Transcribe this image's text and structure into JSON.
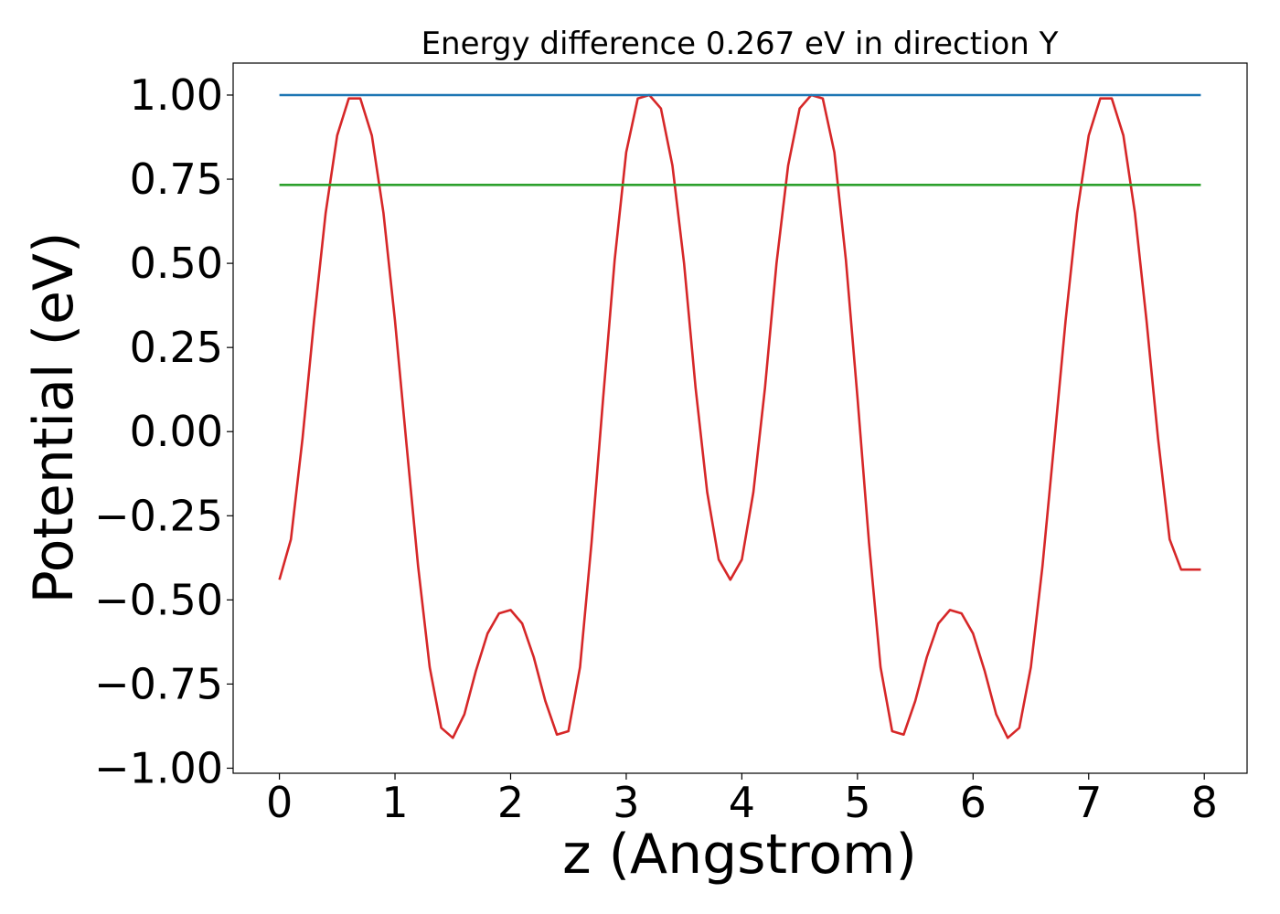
{
  "chart_data": {
    "type": "line",
    "title": "Energy difference 0.267 eV in direction Y",
    "xlabel": "z (Angstrom)",
    "ylabel": "Potential (eV)",
    "xlim": [
      -0.4,
      8.37
    ],
    "ylim": [
      -1.015,
      1.095
    ],
    "xticks": [
      0,
      1,
      2,
      3,
      4,
      5,
      6,
      7,
      8
    ],
    "xtick_labels": [
      "0",
      "1",
      "2",
      "3",
      "4",
      "5",
      "6",
      "7",
      "8"
    ],
    "yticks": [
      1.0,
      0.75,
      0.5,
      0.25,
      0.0,
      -0.25,
      -0.5,
      -0.75,
      -1.0
    ],
    "ytick_labels": [
      "1.00",
      "0.75",
      "0.50",
      "0.25",
      "0.00",
      "−0.25",
      "−0.50",
      "−0.75",
      "−1.00"
    ],
    "grid": false,
    "series": [
      {
        "color": "#d62728",
        "x": [
          0.0,
          0.1,
          0.2,
          0.3,
          0.4,
          0.5,
          0.6,
          0.7,
          0.8,
          0.9,
          1.0,
          1.1,
          1.2,
          1.3,
          1.4,
          1.5,
          1.6,
          1.7,
          1.8,
          1.9,
          2.0,
          2.1,
          2.2,
          2.3,
          2.4,
          2.5,
          2.6,
          2.7,
          2.8,
          2.9,
          3.0,
          3.1,
          3.2,
          3.3,
          3.4,
          3.5,
          3.6,
          3.7,
          3.8,
          3.9,
          4.0,
          4.1,
          4.2,
          4.3,
          4.4,
          4.5,
          4.6,
          4.7,
          4.8,
          4.9,
          5.0,
          5.1,
          5.2,
          5.3,
          5.4,
          5.5,
          5.6,
          5.7,
          5.8,
          5.9,
          6.0,
          6.1,
          6.2,
          6.3,
          6.4,
          6.5,
          6.6,
          6.7,
          6.8,
          6.9,
          7.0,
          7.1,
          7.2,
          7.3,
          7.4,
          7.5,
          7.6,
          7.7,
          7.8,
          7.9,
          7.97
        ],
        "y": [
          -0.44,
          -0.32,
          -0.02,
          0.33,
          0.65,
          0.88,
          0.99,
          0.99,
          0.88,
          0.65,
          0.33,
          -0.04,
          -0.4,
          -0.7,
          -0.88,
          -0.91,
          -0.84,
          -0.71,
          -0.6,
          -0.54,
          -0.53,
          -0.57,
          -0.67,
          -0.8,
          -0.9,
          -0.89,
          -0.7,
          -0.33,
          0.1,
          0.51,
          0.83,
          0.99,
          1.0,
          0.96,
          0.79,
          0.5,
          0.13,
          -0.18,
          -0.38,
          -0.44,
          -0.38,
          -0.18,
          0.13,
          0.5,
          0.79,
          0.96,
          1.0,
          0.99,
          0.83,
          0.51,
          0.1,
          -0.33,
          -0.7,
          -0.89,
          -0.9,
          -0.8,
          -0.67,
          -0.57,
          -0.53,
          -0.54,
          -0.6,
          -0.71,
          -0.84,
          -0.91,
          -0.88,
          -0.7,
          -0.4,
          -0.04,
          0.33,
          0.65,
          0.88,
          0.99,
          0.99,
          0.88,
          0.65,
          0.33,
          -0.02,
          -0.32,
          -0.41,
          -0.41,
          -0.41
        ]
      },
      {
        "color": "#1f77b4",
        "x": [
          0.0,
          7.97
        ],
        "y": [
          1.0,
          1.0
        ]
      },
      {
        "color": "#2ca02c",
        "x": [
          0.0,
          7.97
        ],
        "y": [
          0.733,
          0.733
        ]
      }
    ]
  }
}
